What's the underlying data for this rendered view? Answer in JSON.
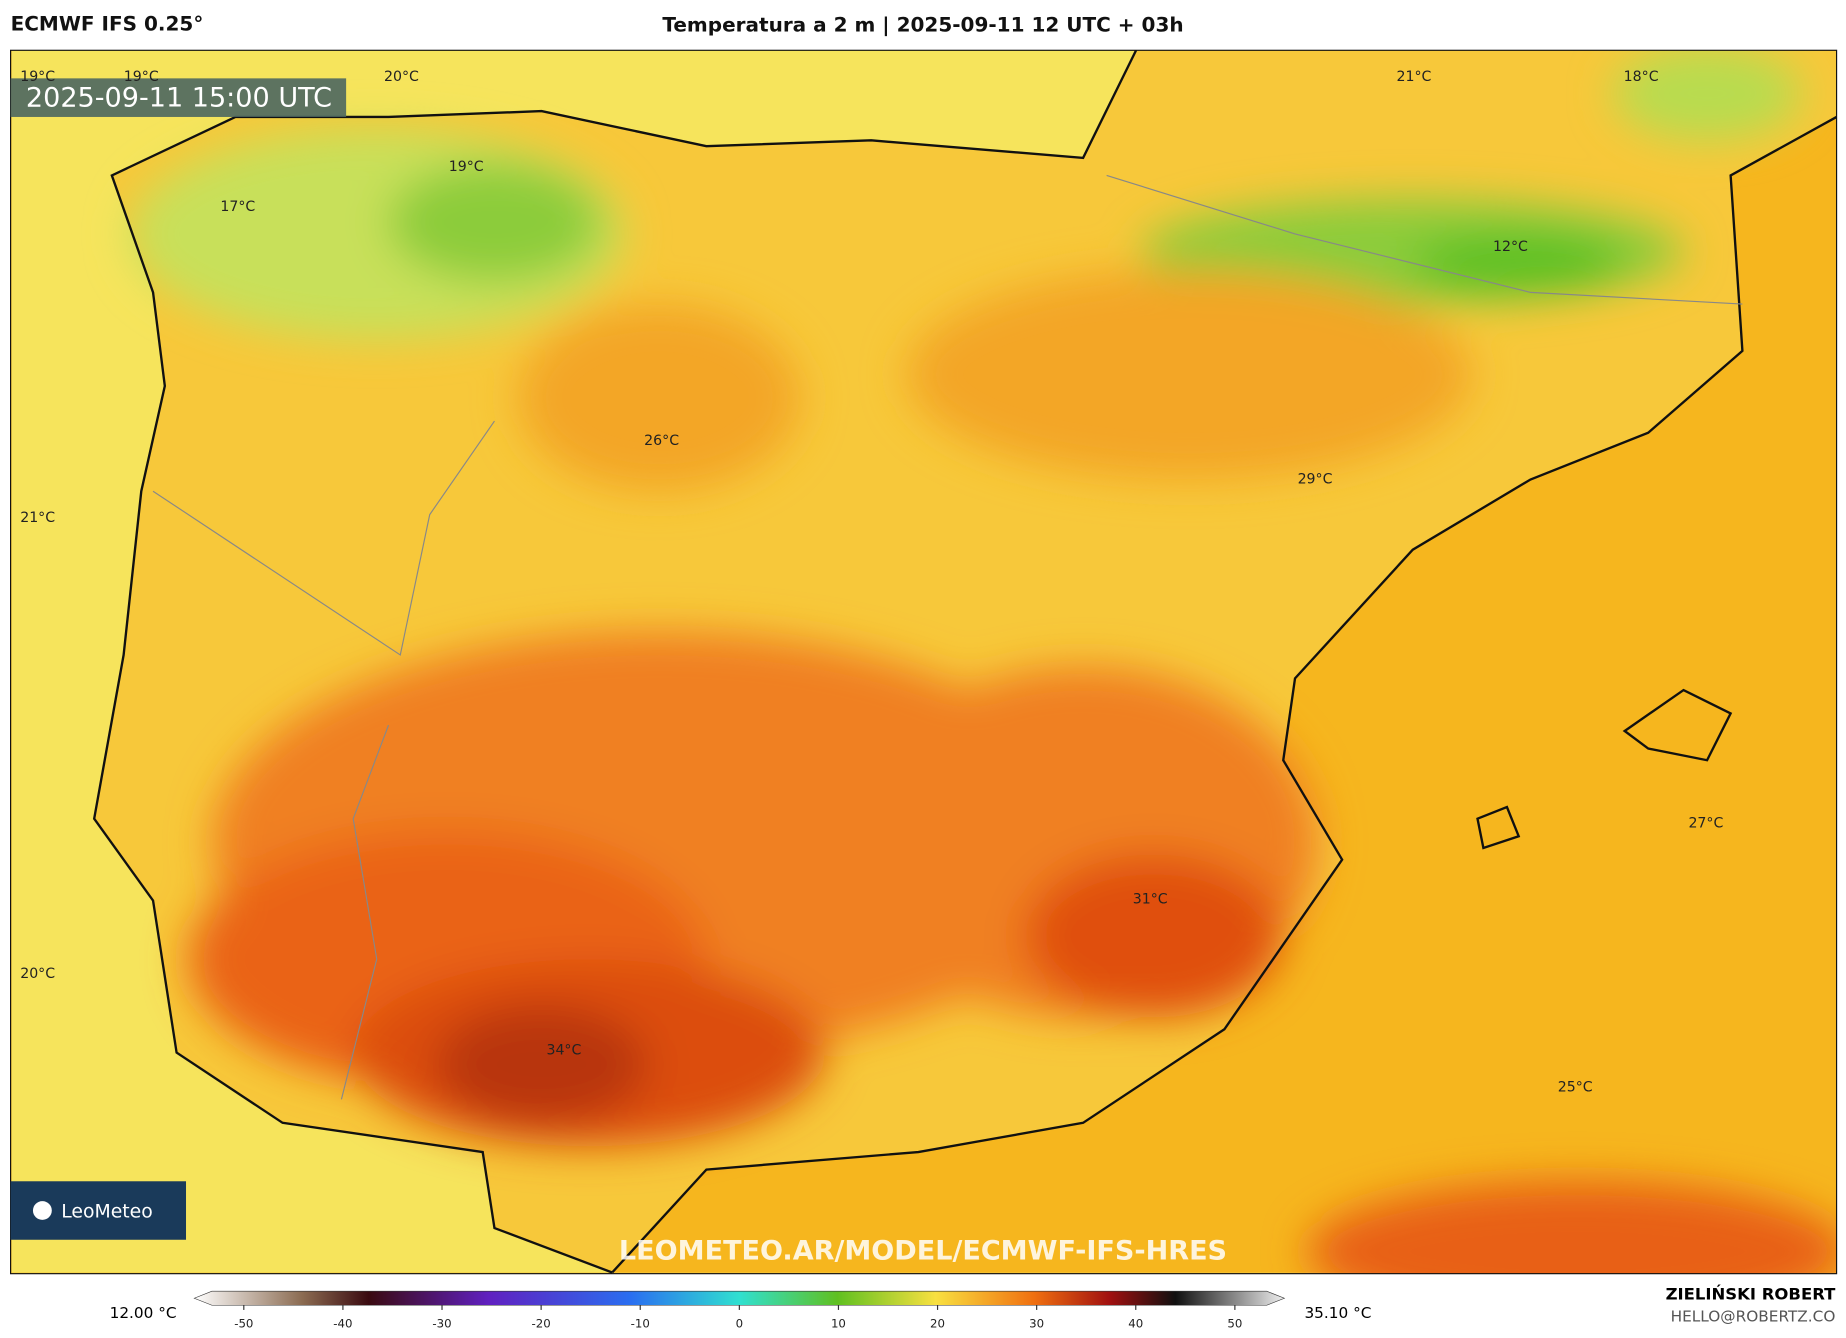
{
  "header": {
    "model": "ECMWF IFS 0.25°",
    "title": "Temperatura a 2 m | 2025-09-11 12 UTC + 03h"
  },
  "map": {
    "valid_time": "2025-09-11 15:00 UTC",
    "temperature_labels": [
      "19°C",
      "19°C",
      "20°C",
      "19°C",
      "17°C",
      "21°C",
      "18°C",
      "12°C",
      "26°C",
      "29°C",
      "21°C",
      "27°C",
      "31°C",
      "20°C",
      "34°C",
      "25°C"
    ],
    "watermark": "LEOMETEO.AR/MODEL/ECMWF-IFS-HRES",
    "logo": "LeoMeteo"
  },
  "colorbar": {
    "min_label": "12.00 °C",
    "max_label": "35.10 °C",
    "range": [
      -55,
      55
    ],
    "ticks": [
      -50,
      -40,
      -30,
      -20,
      -10,
      0,
      10,
      20,
      30,
      40,
      50
    ]
  },
  "footer": {
    "author": "ZIELIŃSKI ROBERT",
    "email": "HELLO@ROBERTZ.CO"
  }
}
